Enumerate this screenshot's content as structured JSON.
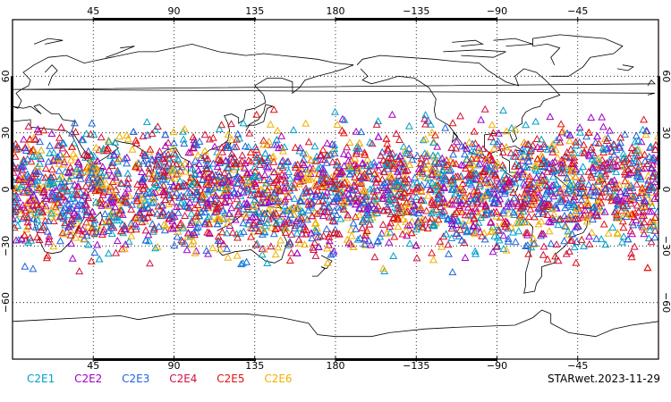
{
  "map": {
    "projection": "equirectangular",
    "central_longitude": 0,
    "lon_range": [
      0,
      360
    ],
    "lat_range": [
      -90,
      90
    ],
    "gridline_longitudes": [
      45,
      90,
      135,
      180,
      225,
      270,
      315
    ],
    "gridline_latitudes": [
      -60,
      -30,
      0,
      30,
      60
    ],
    "top_lon_labels": [
      "45",
      "90",
      "135",
      "180",
      "−135",
      "−90",
      "−45"
    ],
    "bottom_lon_labels": [
      "45",
      "90",
      "135",
      "180",
      "−135",
      "−90",
      "−45"
    ],
    "left_lat_labels": [
      "60",
      "30",
      "0",
      "−30",
      "−60"
    ],
    "right_lat_labels": [
      "60",
      "30",
      "0",
      "−30",
      "−60"
    ],
    "coastline_color": "#000000",
    "grid_style": "dotted"
  },
  "legend": {
    "items": [
      {
        "label": "C2E1",
        "color": "#00a0c8"
      },
      {
        "label": "C2E2",
        "color": "#a000c8"
      },
      {
        "label": "C2E3",
        "color": "#1e64dc"
      },
      {
        "label": "C2E4",
        "color": "#d01040"
      },
      {
        "label": "C2E5",
        "color": "#e01010"
      },
      {
        "label": "C2E6",
        "color": "#f0b000"
      }
    ]
  },
  "stamp": "STARwet.2023-11-29",
  "observations": {
    "marker": "triangle-open",
    "lat_extent": [
      -45,
      45
    ],
    "series": [
      "C2E1",
      "C2E2",
      "C2E3",
      "C2E4",
      "C2E5",
      "C2E6"
    ]
  }
}
